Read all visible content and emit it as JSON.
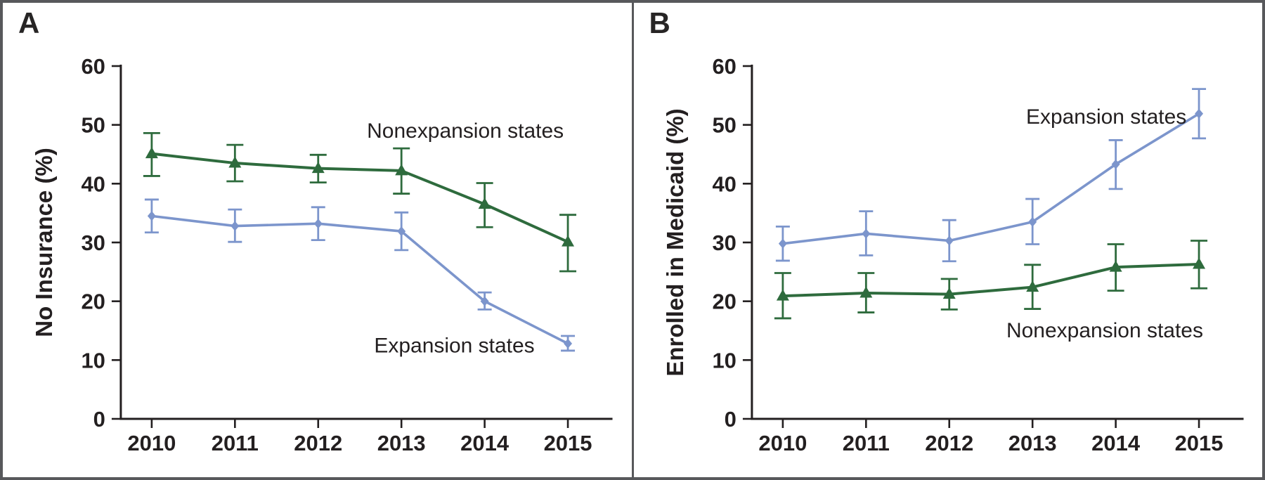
{
  "figure": {
    "background": "#ffffff",
    "border_color": "#57585b"
  },
  "colors": {
    "expansion_blue": "#7c95cc",
    "nonexpansion_green": "#2e6b3d",
    "axis": "#231f20",
    "text": "#231f20"
  },
  "chart_data": [
    {
      "type": "line",
      "panel_label": "A",
      "title": "",
      "xlabel": "",
      "ylabel": "No Insurance (%)",
      "ylim": [
        0,
        60
      ],
      "yticks": [
        0,
        10,
        20,
        30,
        40,
        50,
        60
      ],
      "x": [
        2010,
        2011,
        2012,
        2013,
        2014,
        2015
      ],
      "grid": false,
      "error_bars": true,
      "legend_position": "inline-annotations",
      "series": [
        {
          "name": "Nonexpansion states",
          "color_key": "nonexpansion_green",
          "marker": "triangle",
          "values": [
            45.1,
            43.5,
            42.6,
            42.2,
            36.5,
            30.1
          ],
          "ci_low": [
            41.3,
            40.4,
            40.2,
            38.3,
            32.6,
            25.1
          ],
          "ci_high": [
            48.6,
            46.6,
            44.9,
            46.0,
            40.1,
            34.7
          ],
          "annotation": {
            "text": "Nonexpansion states",
            "x": 2014.95,
            "y": 49.1,
            "anchor": "end"
          }
        },
        {
          "name": "Expansion states",
          "color_key": "expansion_blue",
          "marker": "diamond",
          "values": [
            34.5,
            32.8,
            33.2,
            31.9,
            20.0,
            12.8
          ],
          "ci_low": [
            31.7,
            30.1,
            30.4,
            28.7,
            18.6,
            11.6
          ],
          "ci_high": [
            37.3,
            35.6,
            36.0,
            35.1,
            21.5,
            14.1
          ],
          "annotation": {
            "text": "Expansion states",
            "x": 2014.6,
            "y": 12.6,
            "anchor": "end"
          }
        }
      ]
    },
    {
      "type": "line",
      "panel_label": "B",
      "title": "",
      "xlabel": "",
      "ylabel": "Enrolled in Medicaid (%)",
      "ylim": [
        0,
        60
      ],
      "yticks": [
        0,
        10,
        20,
        30,
        40,
        50,
        60
      ],
      "x": [
        2010,
        2011,
        2012,
        2013,
        2014,
        2015
      ],
      "grid": false,
      "error_bars": true,
      "legend_position": "inline-annotations",
      "series": [
        {
          "name": "Expansion states",
          "color_key": "expansion_blue",
          "marker": "diamond",
          "values": [
            29.8,
            31.5,
            30.3,
            33.5,
            43.3,
            51.9
          ],
          "ci_low": [
            26.9,
            27.8,
            26.8,
            29.7,
            39.1,
            47.7
          ],
          "ci_high": [
            32.7,
            35.3,
            33.8,
            37.4,
            47.4,
            56.1
          ],
          "annotation": {
            "text": "Expansion states",
            "x": 2014.85,
            "y": 51.5,
            "anchor": "end"
          }
        },
        {
          "name": "Nonexpansion states",
          "color_key": "nonexpansion_green",
          "marker": "triangle",
          "values": [
            20.9,
            21.4,
            21.2,
            22.4,
            25.8,
            26.3
          ],
          "ci_low": [
            17.1,
            18.1,
            18.6,
            18.7,
            21.8,
            22.2
          ],
          "ci_high": [
            24.8,
            24.8,
            23.8,
            26.2,
            29.7,
            30.3
          ],
          "annotation": {
            "text": "Nonexpansion states",
            "x": 2015.05,
            "y": 15.2,
            "anchor": "end"
          }
        }
      ]
    }
  ]
}
